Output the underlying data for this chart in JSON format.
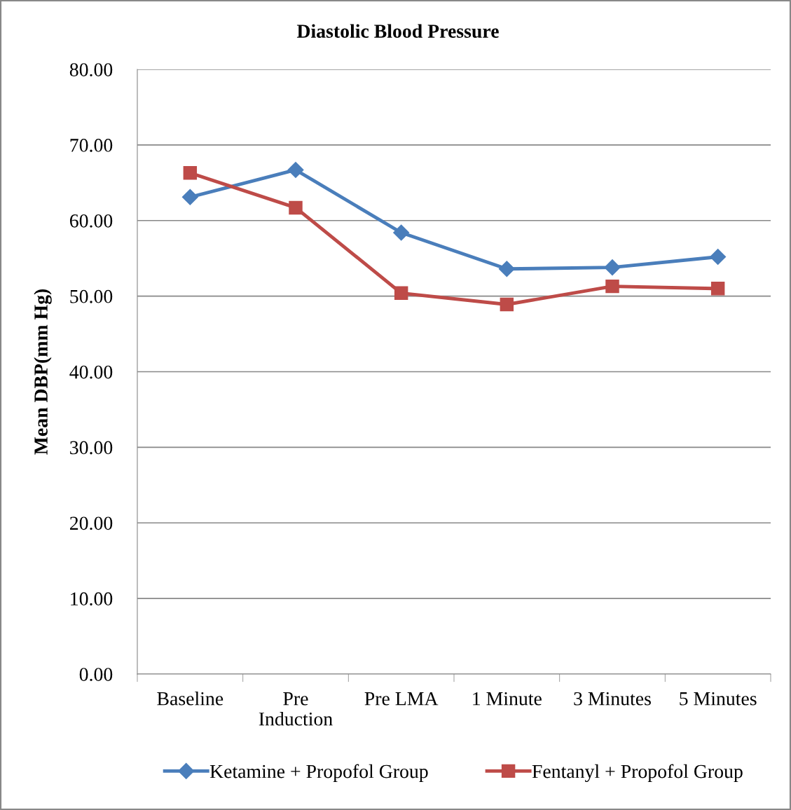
{
  "chart_data": {
    "type": "line",
    "title": "Diastolic Blood Pressure",
    "ylabel": "Mean DBP(mm Hg)",
    "categories": [
      "Baseline",
      "Pre\nInduction",
      "Pre LMA",
      "1 Minute",
      "3 Minutes",
      "5 Minutes"
    ],
    "series": [
      {
        "name": "Ketamine + Propofol Group",
        "color": "#4a7ebb",
        "marker": "diamond",
        "values": [
          63.1,
          66.7,
          58.4,
          53.6,
          53.8,
          55.2
        ]
      },
      {
        "name": "Fentanyl + Propofol Group",
        "color": "#be4b48",
        "marker": "square",
        "values": [
          66.3,
          61.7,
          50.4,
          48.9,
          51.3,
          51.0
        ]
      }
    ],
    "ylim": [
      0,
      80
    ],
    "yticks": [
      {
        "value": 0,
        "label": "0.00"
      },
      {
        "value": 10,
        "label": "10.00"
      },
      {
        "value": 20,
        "label": "20.00"
      },
      {
        "value": 30,
        "label": "30.00"
      },
      {
        "value": 40,
        "label": "40.00"
      },
      {
        "value": 50,
        "label": "50.00"
      },
      {
        "value": 60,
        "label": "60.00"
      },
      {
        "value": 70,
        "label": "70.00"
      },
      {
        "value": 80,
        "label": "80.00"
      }
    ],
    "grid": "y",
    "legend": "bottom",
    "line_style": "solid"
  }
}
